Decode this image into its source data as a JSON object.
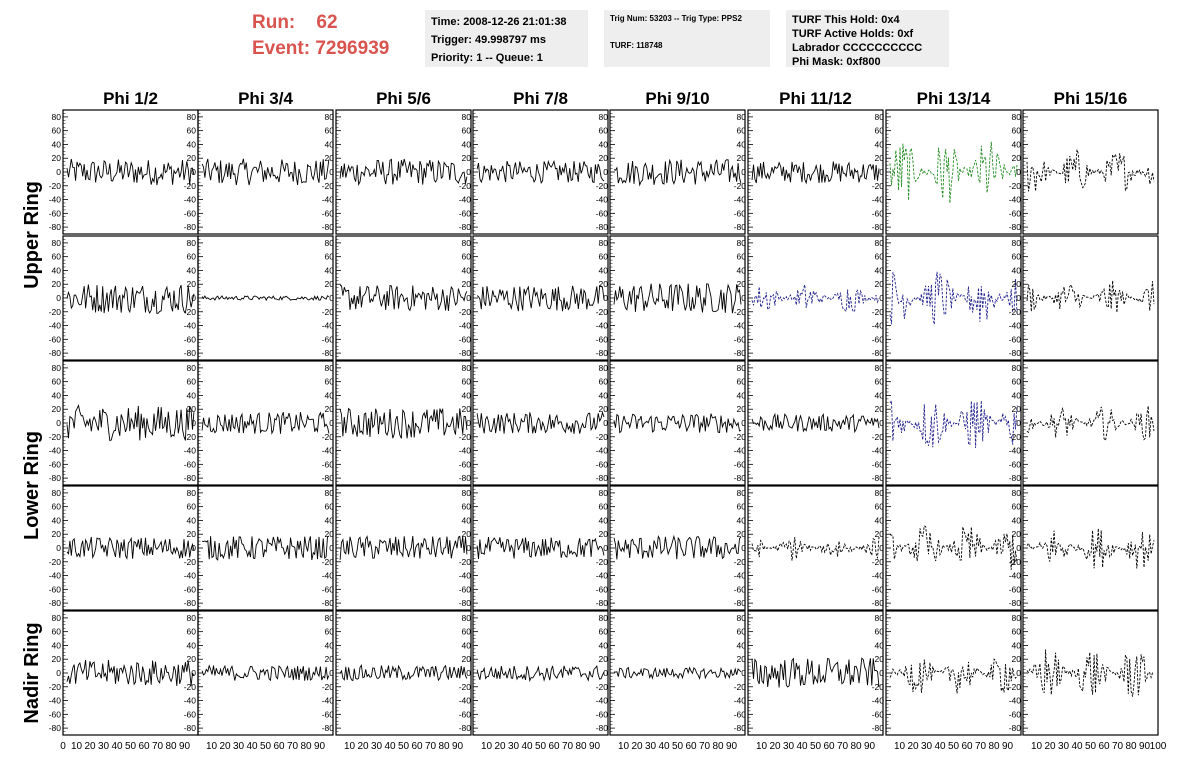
{
  "header": {
    "run_label": "Run:",
    "run_value": "62",
    "event_label": "Event:",
    "event_value": "7296939"
  },
  "info_panel": {
    "time": "Time: 2008-12-26 21:01:38",
    "trigger": "Trigger: 49.998797 ms",
    "priority": "Priority: 1 -- Queue: 1"
  },
  "trig_panel": {
    "trig": "Trig Num: 53203 -- Trig Type: PPS2",
    "turf": "TURF: 118748"
  },
  "turf_panel": {
    "this_hold": "TURF This Hold: 0x4",
    "active_holds": "TURF Active Holds: 0xf",
    "labrador": "Labrador CCCCCCCCCC",
    "phi_mask": "Phi Mask: 0xf800"
  },
  "colors": {
    "header_red": "#d9534f",
    "panel_bg": "#eeeeee",
    "trace_black": "#000000",
    "trace_green": "#228b22",
    "trace_blue": "#1f1f8c"
  },
  "chart_data": {
    "type": "line",
    "columns": [
      "Phi 1/2",
      "Phi 3/4",
      "Phi 5/6",
      "Phi 7/8",
      "Phi 9/10",
      "Phi 11/12",
      "Phi 13/14",
      "Phi 15/16"
    ],
    "ring_labels": [
      "Upper Ring",
      "Lower Ring",
      "Nadir Ring"
    ],
    "row_ring": [
      "Upper Ring",
      "Upper Ring",
      "Lower Ring",
      "Lower Ring",
      "Nadir Ring"
    ],
    "xlim": [
      0,
      100
    ],
    "ylim": [
      -90,
      90
    ],
    "yticks": [
      80,
      60,
      40,
      20,
      0,
      -20,
      -40,
      -60,
      -80
    ],
    "xtick_labels": [
      "10",
      "20",
      "30",
      "40",
      "50",
      "60",
      "70",
      "80",
      "90",
      "100"
    ],
    "first_x_tick": "0",
    "last_x_tick": "100",
    "grid": false,
    "n_samples": 90,
    "amplitude": [
      [
        12,
        12,
        12,
        10,
        12,
        10,
        32,
        22
      ],
      [
        14,
        2,
        12,
        12,
        14,
        14,
        28,
        16
      ],
      [
        16,
        10,
        14,
        10,
        9,
        8,
        28,
        16
      ],
      [
        10,
        11,
        11,
        10,
        11,
        12,
        22,
        20
      ],
      [
        12,
        7,
        7,
        7,
        5,
        14,
        20,
        26
      ]
    ],
    "trace_style": [
      [
        "solid",
        "solid",
        "solid",
        "solid",
        "solid",
        "solid",
        "dashed",
        "dashed"
      ],
      [
        "solid",
        "solid",
        "solid",
        "solid",
        "solid",
        "dashed",
        "dashed",
        "dashed"
      ],
      [
        "solid",
        "solid",
        "solid",
        "solid",
        "solid",
        "solid",
        "dashed",
        "dashed"
      ],
      [
        "solid",
        "solid",
        "solid",
        "solid",
        "solid",
        "dashed",
        "dashed",
        "dashed"
      ],
      [
        "solid",
        "solid",
        "solid",
        "solid",
        "solid",
        "solid",
        "dashed",
        "dashed"
      ]
    ],
    "trace_color": [
      [
        "black",
        "black",
        "black",
        "black",
        "black",
        "black",
        "green",
        "black"
      ],
      [
        "black",
        "black",
        "black",
        "black",
        "black",
        "blue",
        "blue",
        "black"
      ],
      [
        "black",
        "black",
        "black",
        "black",
        "black",
        "black",
        "blue",
        "black"
      ],
      [
        "black",
        "black",
        "black",
        "black",
        "black",
        "black",
        "black",
        "black"
      ],
      [
        "black",
        "black",
        "black",
        "black",
        "black",
        "black",
        "black",
        "black"
      ]
    ]
  }
}
